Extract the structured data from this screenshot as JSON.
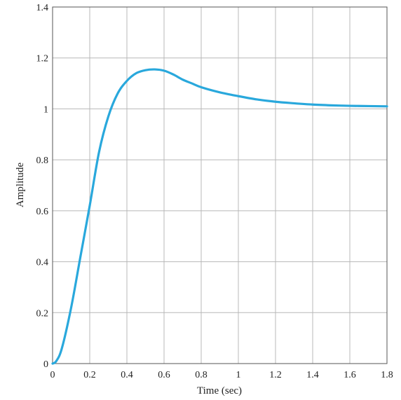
{
  "chart_data": {
    "type": "line",
    "title": "",
    "xlabel": "Time (sec)",
    "ylabel": "Amplitude",
    "xlim": [
      0,
      1.8
    ],
    "ylim": [
      0,
      1.4
    ],
    "xticks": [
      0,
      0.2,
      0.4,
      0.6,
      0.8,
      1,
      1.2,
      1.4,
      1.6,
      1.8
    ],
    "yticks": [
      0,
      0.2,
      0.4,
      0.6,
      0.8,
      1,
      1.2,
      1.4
    ],
    "xtick_labels": [
      "0",
      "0.2",
      "0.4",
      "0.6",
      "0.8",
      "1",
      "1.2",
      "1.4",
      "1.6",
      "1.8"
    ],
    "ytick_labels": [
      "0",
      "0.2",
      "0.4",
      "0.6",
      "0.8",
      "1",
      "1.2",
      "1.4"
    ],
    "grid": true,
    "series": [
      {
        "color": "#29a8dc",
        "x": [
          0,
          0.02,
          0.05,
          0.1,
          0.15,
          0.2,
          0.25,
          0.3,
          0.35,
          0.4,
          0.45,
          0.5,
          0.55,
          0.6,
          0.65,
          0.7,
          0.75,
          0.8,
          0.9,
          1.0,
          1.1,
          1.2,
          1.3,
          1.4,
          1.5,
          1.6,
          1.7,
          1.8
        ],
        "y": [
          0,
          0.01,
          0.06,
          0.22,
          0.42,
          0.62,
          0.83,
          0.97,
          1.06,
          1.11,
          1.14,
          1.152,
          1.155,
          1.15,
          1.135,
          1.115,
          1.1,
          1.085,
          1.065,
          1.05,
          1.037,
          1.028,
          1.022,
          1.017,
          1.014,
          1.012,
          1.011,
          1.01
        ]
      }
    ]
  }
}
